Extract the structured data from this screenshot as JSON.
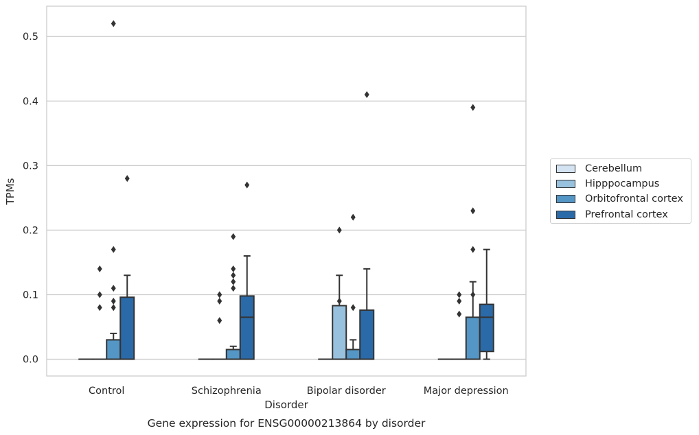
{
  "chart_data": {
    "type": "box",
    "title": "Gene expression for ENSG00000213864 by disorder",
    "xlabel": "Disorder",
    "ylabel": "TPMs",
    "ylim": [
      -0.026,
      0.547
    ],
    "yticks": [
      0.0,
      0.1,
      0.2,
      0.3,
      0.4,
      0.5
    ],
    "ytick_labels": [
      "0.0",
      "0.1",
      "0.2",
      "0.3",
      "0.4",
      "0.5"
    ],
    "grid": "horizontal",
    "legend_position": "right",
    "categories": [
      "Control",
      "Schizophrenia",
      "Bipolar disorder",
      "Major depression"
    ],
    "series": [
      {
        "name": "Cerebellum",
        "color": "#d4e3f2",
        "boxes": [
          {
            "whisker_low": 0,
            "q1": 0,
            "median": 0,
            "q3": 0,
            "whisker_high": 0,
            "outliers": []
          },
          {
            "whisker_low": 0,
            "q1": 0,
            "median": 0,
            "q3": 0,
            "whisker_high": 0,
            "outliers": []
          },
          {
            "whisker_low": 0,
            "q1": 0,
            "median": 0,
            "q3": 0,
            "whisker_high": 0,
            "outliers": []
          },
          {
            "whisker_low": 0,
            "q1": 0,
            "median": 0,
            "q3": 0,
            "whisker_high": 0,
            "outliers": []
          }
        ]
      },
      {
        "name": "Hipppocampus",
        "color": "#98c1de",
        "boxes": [
          {
            "whisker_low": 0,
            "q1": 0,
            "median": 0,
            "q3": 0,
            "whisker_high": 0,
            "outliers": [
              0.08,
              0.1,
              0.14
            ]
          },
          {
            "whisker_low": 0,
            "q1": 0,
            "median": 0,
            "q3": 0,
            "whisker_high": 0,
            "outliers": [
              0.06,
              0.09,
              0.1
            ]
          },
          {
            "whisker_low": 0,
            "q1": 0,
            "median": 0,
            "q3": 0.083,
            "whisker_high": 0.13,
            "outliers": [
              0.09,
              0.2
            ]
          },
          {
            "whisker_low": 0,
            "q1": 0,
            "median": 0,
            "q3": 0,
            "whisker_high": 0,
            "outliers": [
              0.07,
              0.09,
              0.1
            ]
          }
        ]
      },
      {
        "name": "Orbitofrontal cortex",
        "color": "#5496c6",
        "boxes": [
          {
            "whisker_low": 0,
            "q1": 0,
            "median": 0,
            "q3": 0.03,
            "whisker_high": 0.04,
            "outliers": [
              0.08,
              0.09,
              0.11,
              0.17,
              0.52
            ]
          },
          {
            "whisker_low": 0,
            "q1": 0,
            "median": 0,
            "q3": 0.015,
            "whisker_high": 0.02,
            "outliers": [
              0.11,
              0.12,
              0.13,
              0.14,
              0.19
            ]
          },
          {
            "whisker_low": 0,
            "q1": 0,
            "median": 0,
            "q3": 0.015,
            "whisker_high": 0.03,
            "outliers": [
              0.08,
              0.22
            ]
          },
          {
            "whisker_low": 0,
            "q1": 0,
            "median": 0,
            "q3": 0.065,
            "whisker_high": 0.12,
            "outliers": [
              0.1,
              0.17,
              0.23,
              0.39
            ]
          }
        ]
      },
      {
        "name": "Prefrontal cortex",
        "color": "#2b6aa8",
        "boxes": [
          {
            "whisker_low": 0,
            "q1": 0,
            "median": 0,
            "q3": 0.096,
            "whisker_high": 0.13,
            "outliers": [
              0.28
            ]
          },
          {
            "whisker_low": 0,
            "q1": 0,
            "median": 0.065,
            "q3": 0.098,
            "whisker_high": 0.16,
            "outliers": [
              0.27
            ]
          },
          {
            "whisker_low": 0,
            "q1": 0,
            "median": 0,
            "q3": 0.076,
            "whisker_high": 0.14,
            "outliers": [
              0.41
            ]
          },
          {
            "whisker_low": 0,
            "q1": 0.012,
            "median": 0.065,
            "q3": 0.085,
            "whisker_high": 0.17,
            "outliers": []
          }
        ]
      }
    ]
  }
}
